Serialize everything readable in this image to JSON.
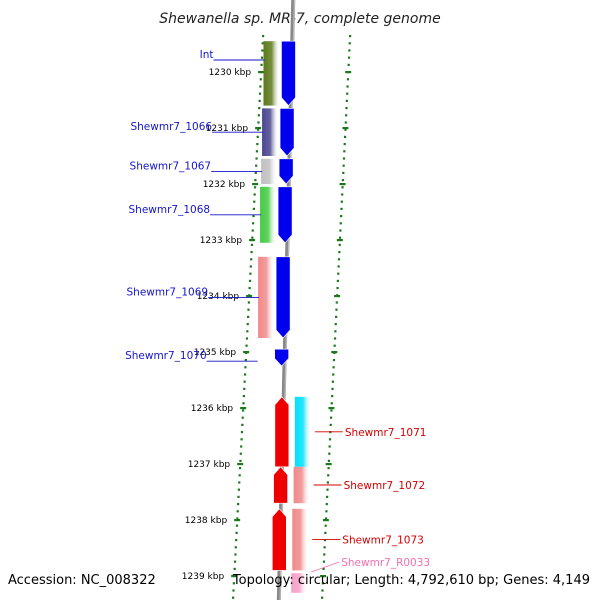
{
  "title": "Shewanella sp. MR-7, complete genome",
  "footer": {
    "accession": "Accession: NC_008322",
    "topology": "Topology: circular; Length: 4,792,610 bp; Genes: 4,149"
  },
  "colors": {
    "ruler_tick": "#1a7a1a",
    "backbone": "#888888",
    "forward_label": "#1515c8",
    "reverse_label": "#d40000",
    "rna_label": "#f070b0"
  },
  "ruler": {
    "ticks": [
      {
        "kbp": 1230,
        "label": "1230 kbp"
      },
      {
        "kbp": 1231,
        "label": "1231 kbp"
      },
      {
        "kbp": 1232,
        "label": "1232 kbp"
      },
      {
        "kbp": 1233,
        "label": "1233 kbp"
      },
      {
        "kbp": 1234,
        "label": "1234 kbp"
      },
      {
        "kbp": 1235,
        "label": "1235 kbp"
      },
      {
        "kbp": 1236,
        "label": "1236 kbp"
      },
      {
        "kbp": 1237,
        "label": "1237 kbp"
      },
      {
        "kbp": 1238,
        "label": "1238 kbp"
      },
      {
        "kbp": 1239,
        "label": "1239 kbp"
      }
    ]
  },
  "genes": [
    {
      "name": "Int",
      "strand": "+",
      "start_kbp": 1229.45,
      "end_kbp": 1230.6,
      "color": "#5e7a1e",
      "label_color": "#1515c8"
    },
    {
      "name": "Shewmr7_1066",
      "strand": "+",
      "start_kbp": 1230.65,
      "end_kbp": 1231.5,
      "color": "#4b4790",
      "label_color": "#1515c8"
    },
    {
      "name": "Shewmr7_1067",
      "strand": "+",
      "start_kbp": 1231.55,
      "end_kbp": 1232.0,
      "color": "#c0c0c0",
      "label_color": "#1515c8"
    },
    {
      "name": "Shewmr7_1068",
      "strand": "+",
      "start_kbp": 1232.05,
      "end_kbp": 1233.05,
      "color": "#44cc44",
      "label_color": "#1515c8"
    },
    {
      "name": "Shewmr7_1069",
      "strand": "+",
      "start_kbp": 1233.3,
      "end_kbp": 1234.75,
      "color": "#f08a8a",
      "label_color": "#1515c8"
    },
    {
      "name": "Shewmr7_1070",
      "strand": "+",
      "start_kbp": 1234.95,
      "end_kbp": 1235.25,
      "color": null,
      "label_color": "#1515c8"
    },
    {
      "name": "Shewmr7_1071",
      "strand": "-",
      "start_kbp": 1235.8,
      "end_kbp": 1237.05,
      "color": "#00e0ff",
      "label_color": "#d40000"
    },
    {
      "name": "Shewmr7_1072",
      "strand": "-",
      "start_kbp": 1237.05,
      "end_kbp": 1237.7,
      "color": "#f08a8a",
      "label_color": "#d40000"
    },
    {
      "name": "Shewmr7_1073",
      "strand": "-",
      "start_kbp": 1237.8,
      "end_kbp": 1238.9,
      "color": "#f08a8a",
      "label_color": "#d40000"
    },
    {
      "name": "Shewmr7_R0033",
      "strand": "-",
      "start_kbp": 1238.95,
      "end_kbp": 1239.3,
      "color": "#f5a0c8",
      "label_color": "#f070b0"
    }
  ]
}
